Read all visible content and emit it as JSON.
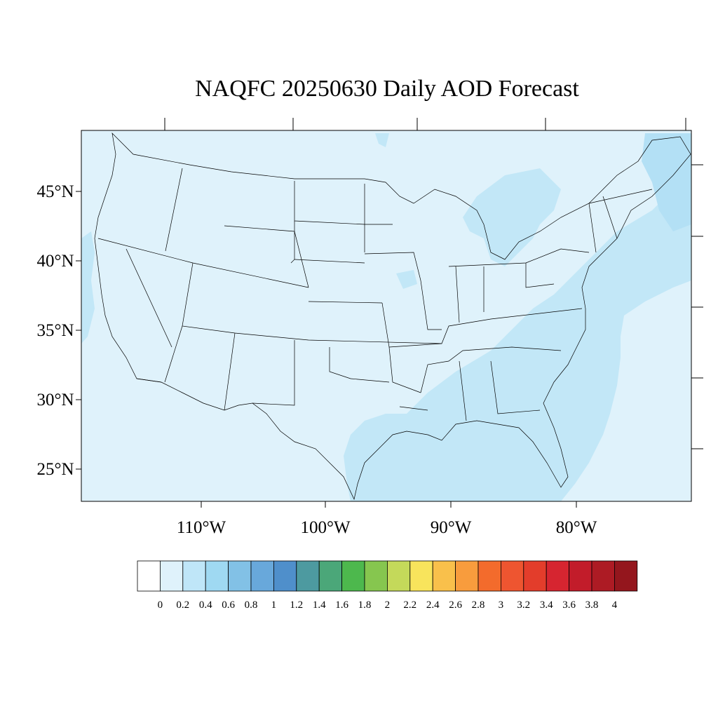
{
  "title": "NAQFC 20250630 Daily AOD Forecast",
  "map": {
    "background_color": "#dff2fb",
    "plume_color": "#c2e7f7",
    "plume_color_darker": "#b3e0f5",
    "lat_labels": [
      "45°N",
      "40°N",
      "35°N",
      "30°N",
      "25°N"
    ],
    "lon_labels": [
      "110°W",
      "100°W",
      "90°W",
      "80°W"
    ]
  },
  "colorbar": {
    "colors": [
      "#ffffff",
      "#dff2fb",
      "#bfe6f8",
      "#9fd9f2",
      "#82c1e6",
      "#68a8db",
      "#4f8fcb",
      "#4d9aa0",
      "#4ba779",
      "#4db84d",
      "#86c64f",
      "#c4d95a",
      "#f8e45c",
      "#f9c04b",
      "#f89c3d",
      "#f36b2c",
      "#ee5530",
      "#e33d2b",
      "#d62530",
      "#c21c2a",
      "#ad1b24",
      "#94161d"
    ],
    "labels": [
      "0",
      "0.2",
      "0.4",
      "0.6",
      "0.8",
      "1",
      "1.2",
      "1.4",
      "1.6",
      "1.8",
      "2",
      "2.2",
      "2.4",
      "2.6",
      "2.8",
      "3",
      "3.2",
      "3.4",
      "3.6",
      "3.8",
      "4"
    ]
  }
}
